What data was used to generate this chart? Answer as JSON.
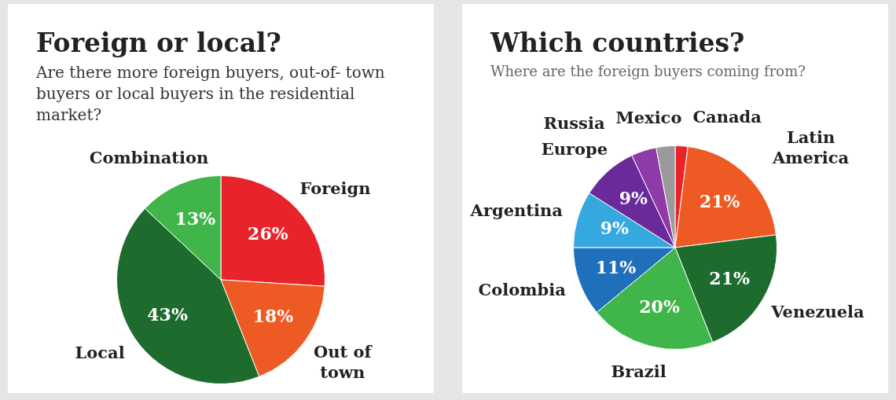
{
  "chart_data": [
    {
      "type": "pie",
      "title": "Foreign or local?",
      "subtitle": "Are there more foreign buyers, out-of- town buyers or local buyers in the residential market?",
      "categories": [
        "Foreign",
        "Out of town",
        "Local",
        "Combination"
      ],
      "values": [
        26,
        18,
        43,
        13
      ],
      "colors": [
        "#e8242a",
        "#ee5a24",
        "#1e6b2e",
        "#3fb54a"
      ],
      "value_labels": [
        "26%",
        "18%",
        "43%",
        "13%"
      ]
    },
    {
      "type": "pie",
      "title": "Which countries?",
      "subtitle": "Where are the foreign buyers coming from?",
      "categories": [
        "Canada",
        "Latin America",
        "Venezuela",
        "Brazil",
        "Colombia",
        "Argentina",
        "Europe",
        "Russia",
        "Mexico"
      ],
      "values": [
        2,
        21,
        21,
        20,
        11,
        9,
        9,
        4,
        3
      ],
      "colors": [
        "#e8242a",
        "#ee5a24",
        "#1e6b2e",
        "#3fb54a",
        "#1f6fba",
        "#36a8e0",
        "#6a2a9a",
        "#8e3aa8",
        "#9a9a9a"
      ],
      "value_labels": [
        null,
        "21%",
        "21%",
        "20%",
        "11%",
        "9%",
        "9%",
        null,
        null
      ]
    }
  ]
}
